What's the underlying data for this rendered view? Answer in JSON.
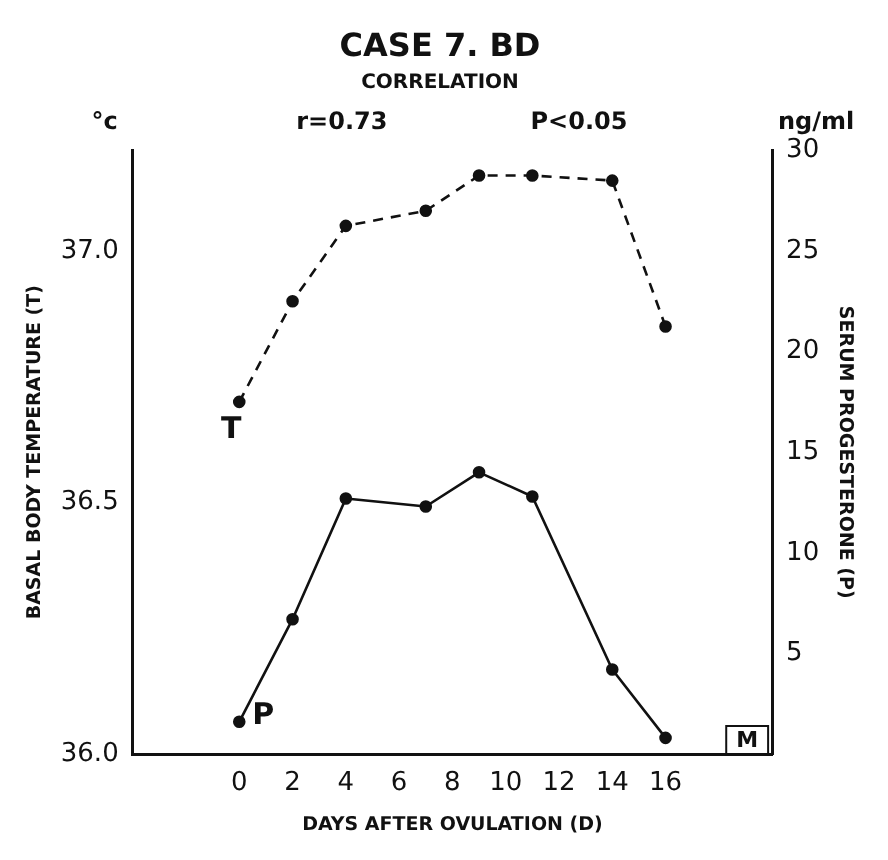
{
  "chart_data": {
    "type": "line",
    "title": "CASE 7. BD",
    "subtitle": "CORRELATION",
    "xlabel": "DAYS AFTER OVULATION (D)",
    "ylabel": "BASAL BODY TEMPERATURE (T)",
    "y2label": "SERUM PROGESTERONE (P)",
    "annotations": [
      "°c",
      "r=0.73",
      "P<0.05",
      "ng/ml",
      "M"
    ],
    "x": [
      0,
      2,
      4,
      7,
      9,
      11,
      14,
      16
    ],
    "series": [
      {
        "name": "T",
        "color": "#111111",
        "line_style": "dashed",
        "values": [
          36.7,
          36.9,
          37.05,
          37.08,
          37.15,
          37.15,
          37.14,
          36.85
        ]
      },
      {
        "name": "P",
        "color": "#111111",
        "line_style": "solid",
        "axis": "y2",
        "values": [
          1.6,
          6.7,
          12.7,
          12.3,
          14.0,
          12.8,
          4.2,
          0.8
        ]
      }
    ],
    "xlim": [
      -4,
      20
    ],
    "xticks": [
      0,
      2,
      4,
      6,
      8,
      10,
      12,
      14,
      16
    ],
    "ylim": [
      36.0,
      37.2
    ],
    "yticks": [
      {
        "value": 36,
        "label": "36.0"
      },
      {
        "value": 36.5,
        "label": "36.5"
      },
      {
        "value": 37,
        "label": "37.0"
      }
    ],
    "y2lim": [
      0,
      30
    ],
    "y2ticks": [
      5,
      10,
      15,
      20,
      25,
      30
    ],
    "grid": false,
    "legend": false,
    "marker": "circle"
  }
}
